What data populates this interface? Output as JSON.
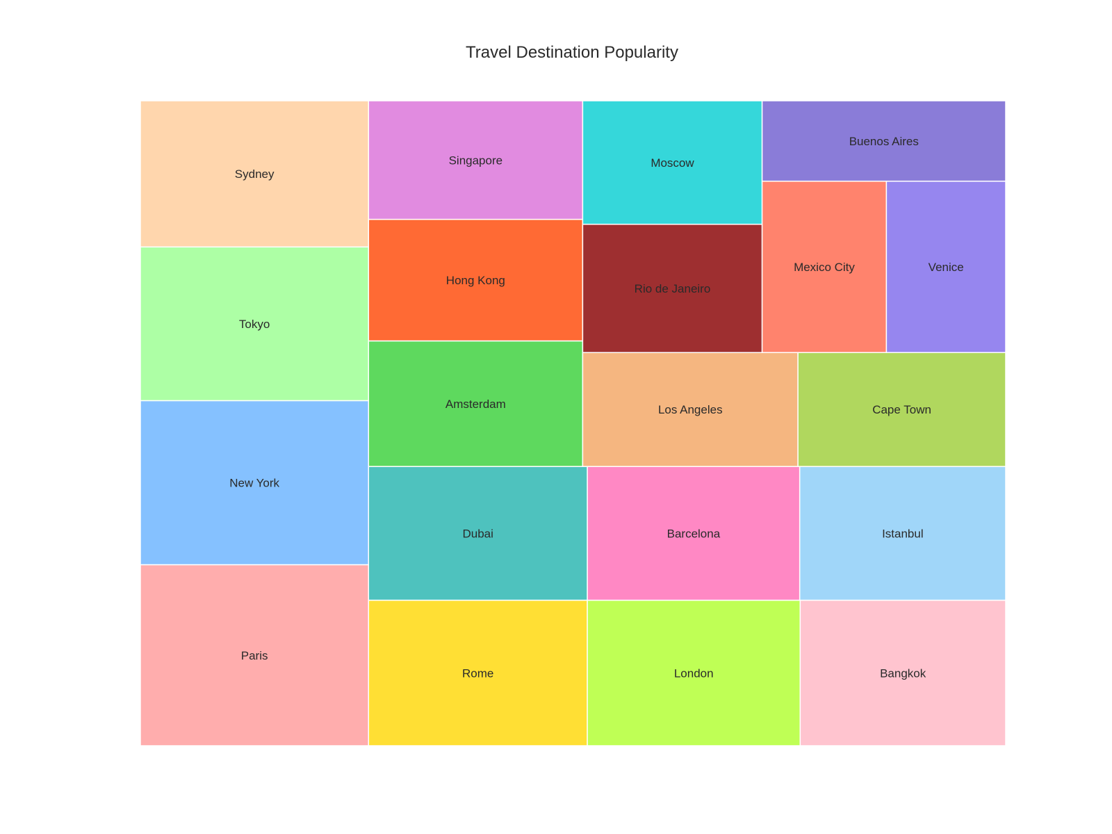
{
  "chart_data": {
    "type": "treemap",
    "title": "Travel Destination Popularity",
    "items": [
      {
        "name": "Paris",
        "value": 19.2,
        "color": "#FFADAD"
      },
      {
        "name": "New York",
        "value": 17.4,
        "color": "#85C1FF"
      },
      {
        "name": "Tokyo",
        "value": 16.3,
        "color": "#ADFFA5"
      },
      {
        "name": "Sydney",
        "value": 15.5,
        "color": "#FFD6AD"
      },
      {
        "name": "Rome",
        "value": 14.8,
        "color": "#FFDF34"
      },
      {
        "name": "London",
        "value": 14.4,
        "color": "#BFFF55"
      },
      {
        "name": "Bangkok",
        "value": 13.9,
        "color": "#FFC4CF"
      },
      {
        "name": "Dubai",
        "value": 13.6,
        "color": "#4EC2BE"
      },
      {
        "name": "Barcelona",
        "value": 13.2,
        "color": "#FF88C4"
      },
      {
        "name": "Istanbul",
        "value": 12.8,
        "color": "#A0D6F9"
      },
      {
        "name": "Amsterdam",
        "value": 12.5,
        "color": "#5ED95E"
      },
      {
        "name": "Hong Kong",
        "value": 12.1,
        "color": "#FF6A34"
      },
      {
        "name": "Singapore",
        "value": 11.8,
        "color": "#E18BE0"
      },
      {
        "name": "Los Angeles",
        "value": 11.4,
        "color": "#F5B680"
      },
      {
        "name": "Cape Town",
        "value": 11.0,
        "color": "#B0D75E"
      },
      {
        "name": "Rio de Janeiro",
        "value": 10.7,
        "color": "#9E2F30"
      },
      {
        "name": "Moscow",
        "value": 10.3,
        "color": "#35D7DA"
      },
      {
        "name": "Mexico City",
        "value": 9.9,
        "color": "#FF836D"
      },
      {
        "name": "Venice",
        "value": 9.5,
        "color": "#9686EF"
      },
      {
        "name": "Buenos Aires",
        "value": 9.1,
        "color": "#8A7CD8"
      }
    ]
  }
}
